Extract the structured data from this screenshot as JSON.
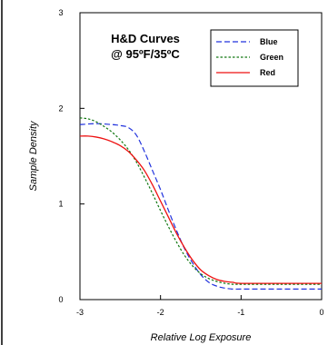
{
  "chart_data": {
    "type": "line",
    "title": "H&D Curves",
    "subtitle": "@ 95ºF/35ºC",
    "xlabel": "Relative Log Exposure",
    "ylabel": "Sample Density",
    "xlim": [
      -3,
      0
    ],
    "ylim": [
      0,
      3
    ],
    "x_ticks": [
      "-3",
      "-2",
      "-1",
      "0"
    ],
    "y_ticks": [
      "0",
      "1",
      "2",
      "3"
    ],
    "grid": false,
    "legend_position": "top-right",
    "series": [
      {
        "name": "Blue",
        "color": "#2233dd",
        "dash": "dashed",
        "points": [
          [
            -3.0,
            1.83
          ],
          [
            -2.8,
            1.84
          ],
          [
            -2.6,
            1.83
          ],
          [
            -2.5,
            1.82
          ],
          [
            -2.4,
            1.8
          ],
          [
            -2.3,
            1.72
          ],
          [
            -2.2,
            1.55
          ],
          [
            -2.1,
            1.35
          ],
          [
            -2.0,
            1.15
          ],
          [
            -1.9,
            0.93
          ],
          [
            -1.8,
            0.72
          ],
          [
            -1.7,
            0.53
          ],
          [
            -1.6,
            0.38
          ],
          [
            -1.5,
            0.26
          ],
          [
            -1.4,
            0.18
          ],
          [
            -1.3,
            0.14
          ],
          [
            -1.2,
            0.12
          ],
          [
            -1.1,
            0.11
          ],
          [
            -1.0,
            0.11
          ],
          [
            -0.5,
            0.11
          ],
          [
            0.0,
            0.11
          ]
        ]
      },
      {
        "name": "Green",
        "color": "#117711",
        "dash": "dotted",
        "points": [
          [
            -3.0,
            1.9
          ],
          [
            -2.9,
            1.89
          ],
          [
            -2.8,
            1.86
          ],
          [
            -2.7,
            1.81
          ],
          [
            -2.6,
            1.75
          ],
          [
            -2.5,
            1.67
          ],
          [
            -2.4,
            1.57
          ],
          [
            -2.3,
            1.44
          ],
          [
            -2.2,
            1.28
          ],
          [
            -2.1,
            1.11
          ],
          [
            -2.0,
            0.93
          ],
          [
            -1.9,
            0.76
          ],
          [
            -1.8,
            0.6
          ],
          [
            -1.7,
            0.46
          ],
          [
            -1.6,
            0.35
          ],
          [
            -1.5,
            0.27
          ],
          [
            -1.4,
            0.22
          ],
          [
            -1.3,
            0.19
          ],
          [
            -1.2,
            0.17
          ],
          [
            -1.1,
            0.16
          ],
          [
            -1.0,
            0.16
          ],
          [
            -0.5,
            0.16
          ],
          [
            0.0,
            0.16
          ]
        ]
      },
      {
        "name": "Red",
        "color": "#ee1111",
        "dash": "solid",
        "points": [
          [
            -3.0,
            1.71
          ],
          [
            -2.9,
            1.71
          ],
          [
            -2.8,
            1.7
          ],
          [
            -2.7,
            1.68
          ],
          [
            -2.6,
            1.65
          ],
          [
            -2.5,
            1.61
          ],
          [
            -2.4,
            1.55
          ],
          [
            -2.3,
            1.46
          ],
          [
            -2.2,
            1.35
          ],
          [
            -2.1,
            1.2
          ],
          [
            -2.0,
            1.03
          ],
          [
            -1.9,
            0.86
          ],
          [
            -1.8,
            0.69
          ],
          [
            -1.7,
            0.54
          ],
          [
            -1.6,
            0.41
          ],
          [
            -1.5,
            0.31
          ],
          [
            -1.4,
            0.25
          ],
          [
            -1.3,
            0.21
          ],
          [
            -1.2,
            0.19
          ],
          [
            -1.1,
            0.18
          ],
          [
            -1.0,
            0.17
          ],
          [
            -0.5,
            0.17
          ],
          [
            0.0,
            0.17
          ]
        ]
      }
    ]
  }
}
